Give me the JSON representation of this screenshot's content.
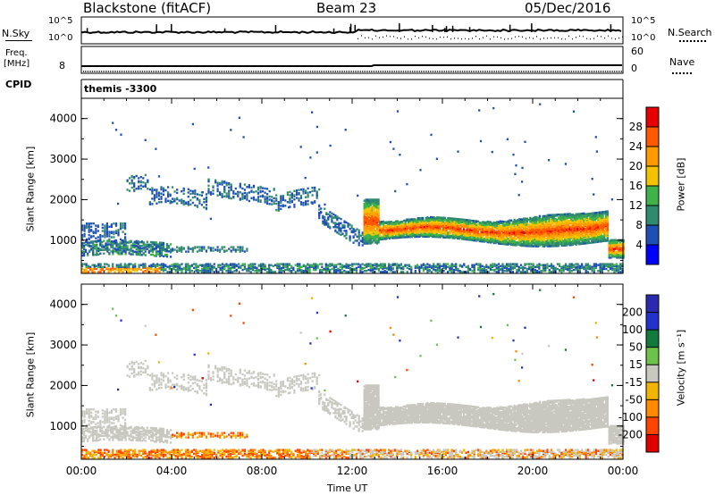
{
  "header": {
    "site": "Blackstone (fitACF)",
    "beam": "Beam 23",
    "date": "05/Dec/2016"
  },
  "top_panels": {
    "nsky_label": "N.Sky",
    "nsearch_label": "N.Search",
    "nsky_ticks": [
      "10^5",
      "10^0"
    ],
    "nsky_right_ticks": [
      "10^5",
      "10^0"
    ],
    "freq_label_line1": "Freq.",
    "freq_label_line2": "[MHz]",
    "freq_tick": "8",
    "nave_label": "Nave",
    "nave_ticks": [
      "60",
      "0"
    ],
    "cpid_label": "CPID",
    "cpid_value": "themis  -3300"
  },
  "colors": {
    "power_scale": [
      "#0000ff",
      "#1e4fb4",
      "#2f8a6e",
      "#3fb24a",
      "#f4c300",
      "#ff9a00",
      "#ff5a00",
      "#e60000"
    ],
    "velocity_scale": [
      "#2a2ab0",
      "#2233cc",
      "#127a3c",
      "#6cc24a",
      "#c8c8c0",
      "#f2b400",
      "#ff8a00",
      "#ff4400",
      "#e00000"
    ],
    "ground_scatter": "#c8c8c0"
  },
  "chart_data": [
    {
      "type": "heatmap",
      "panel": "power",
      "title": "",
      "xlabel": "Time UT",
      "ylabel": "Slant Range [km]",
      "x_ticks": [
        "00:00",
        "04:00",
        "08:00",
        "12:00",
        "16:00",
        "20:00",
        "00:00"
      ],
      "y_ticks": [
        "1000",
        "2000",
        "3000",
        "4000"
      ],
      "xlim_hours": [
        0,
        24
      ],
      "ylim_km": [
        180,
        4500
      ],
      "colorbar_label": "Power [dB]",
      "colorbar_ticks": [
        "4",
        "8",
        "12",
        "16",
        "20",
        "24",
        "28"
      ],
      "colorbar_range": [
        0,
        32
      ],
      "features": [
        {
          "name": "near-range scatter",
          "t_start": 0.0,
          "t_end": 24.0,
          "range_start": 180,
          "range_end": 400,
          "peak_db": 26
        },
        {
          "name": "early band",
          "t_start": 0.0,
          "t_end": 4.0,
          "range_start": 600,
          "range_end": 950,
          "peak_db": 12
        },
        {
          "name": "mid-range patch",
          "t_start": 2.0,
          "t_end": 10.5,
          "range_start": 1700,
          "range_end": 2800,
          "peak_db": 8
        },
        {
          "name": "main band",
          "t_start": 12.5,
          "t_end": 24.0,
          "range_start": 800,
          "range_end": 1800,
          "peak_db": 28
        }
      ]
    },
    {
      "type": "heatmap",
      "panel": "velocity",
      "title": "",
      "xlabel": "Time UT",
      "ylabel": "Slant Range [km]",
      "x_ticks": [
        "00:00",
        "04:00",
        "08:00",
        "12:00",
        "16:00",
        "20:00",
        "00:00"
      ],
      "y_ticks": [
        "1000",
        "2000",
        "3000",
        "4000"
      ],
      "xlim_hours": [
        0,
        24
      ],
      "ylim_km": [
        180,
        4500
      ],
      "colorbar_label": "Velocity [m s⁻¹]",
      "colorbar_ticks": [
        "200",
        "100",
        "50",
        "15",
        "-15",
        "-50",
        "-100",
        "-200"
      ],
      "colorbar_range": [
        -250,
        250
      ]
    }
  ]
}
